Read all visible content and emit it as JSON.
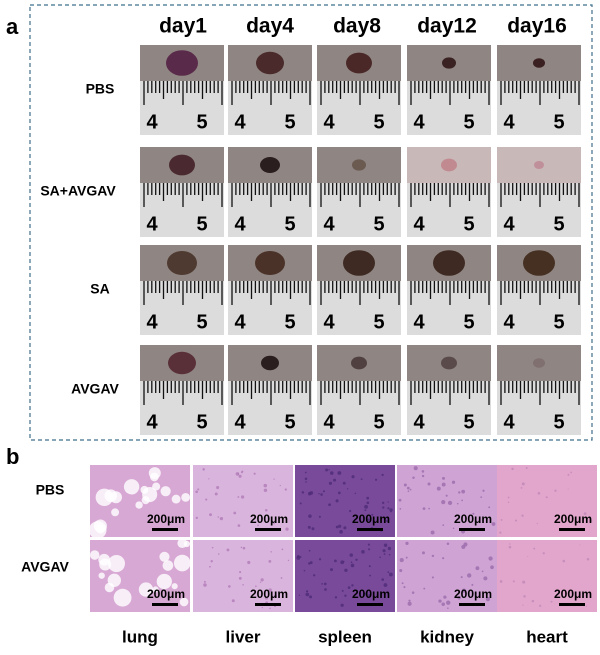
{
  "panel_a": {
    "label": "a",
    "columns": [
      "day1",
      "day4",
      "day8",
      "day12",
      "day16"
    ],
    "rows": [
      "PBS",
      "SA+AVGAV",
      "SA",
      "AVGAV"
    ],
    "ruler_labels": [
      "4",
      "5"
    ]
  },
  "panel_b": {
    "label": "b",
    "rows": [
      "PBS",
      "AVGAV"
    ],
    "columns": [
      "lung",
      "liver",
      "spleen",
      "kidney",
      "heart"
    ],
    "scale_bar": "200μm"
  }
}
